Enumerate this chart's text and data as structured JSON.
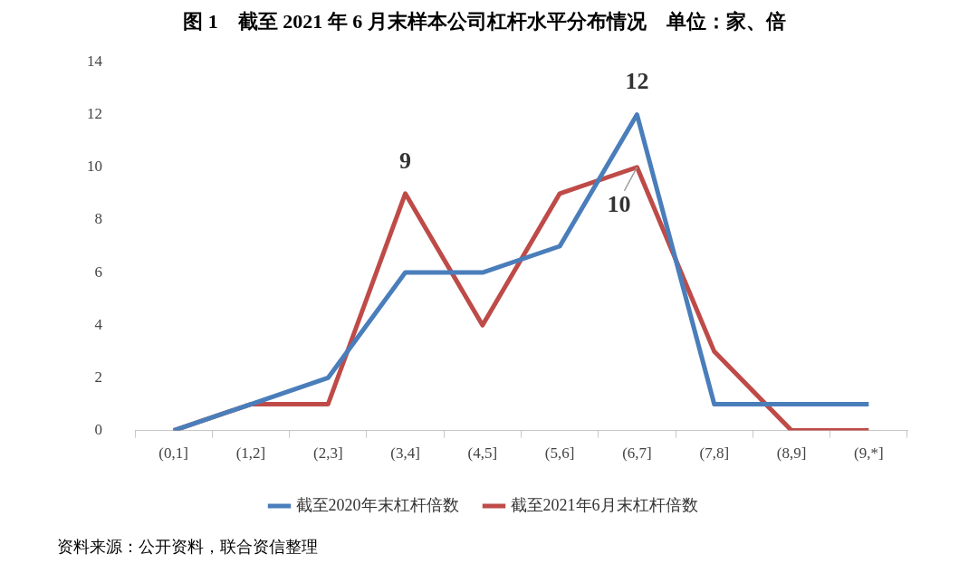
{
  "chart_data": {
    "type": "line",
    "title": "图 1　截至 2021 年 6 月末样本公司杠杆水平分布情况　单位：家、倍",
    "categories": [
      "(0,1]",
      "(1,2]",
      "(2,3]",
      "(3,4]",
      "(4,5]",
      "(5,6]",
      "(6,7]",
      "(7,8]",
      "(8,9]",
      "(9,*]"
    ],
    "series": [
      {
        "name": "截至2020年末杠杆倍数",
        "color": "#4a7ebb",
        "values": [
          0,
          1,
          2,
          6,
          6,
          7,
          12,
          1,
          1,
          1
        ]
      },
      {
        "name": "截至2021年6月末杠杆倍数",
        "color": "#be4b48",
        "values": [
          0,
          1,
          1,
          9,
          4,
          9,
          10,
          3,
          0,
          0
        ]
      }
    ],
    "ylim": [
      0,
      14
    ],
    "yticks": [
      0,
      2,
      4,
      6,
      8,
      10,
      12,
      14
    ],
    "grid": false,
    "legend": "bottom",
    "marker": "none",
    "line_style": "solid",
    "annotations": [
      {
        "text": "9",
        "x": "(3,4]",
        "y": 9
      },
      {
        "text": "12",
        "x": "(6,7]",
        "y": 12
      },
      {
        "text": "10",
        "x": "(6,7]",
        "y": 10
      },
      "资料来源：公开资料，联合资信整理"
    ]
  }
}
